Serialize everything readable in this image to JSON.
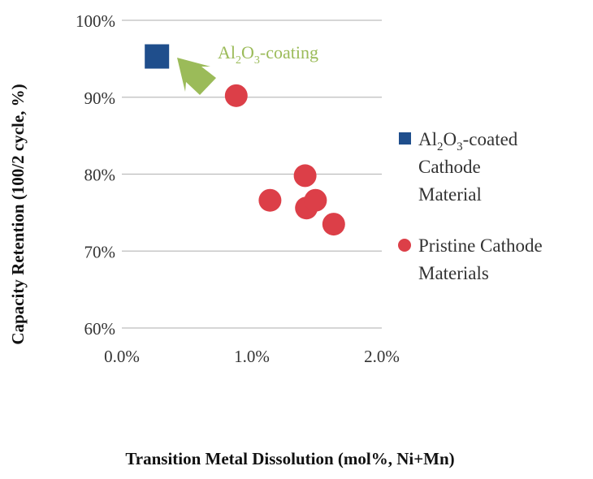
{
  "chart_data": {
    "type": "scatter",
    "title": "",
    "xlabel": "Transition  Metal Dissolution  (mol%,  Ni+Mn)",
    "ylabel": "Capacity  Retention (100/2 cycle, %)",
    "xlim": [
      0.0,
      2.0
    ],
    "ylim": [
      60,
      100
    ],
    "x_ticks": [
      "0.0%",
      "1.0%",
      "2.0%"
    ],
    "y_ticks": [
      "60%",
      "70%",
      "80%",
      "90%",
      "100%"
    ],
    "grid": "horizontal",
    "legend_position": "right",
    "series": [
      {
        "name_parts": [
          "Al",
          "2",
          "O",
          "3",
          "-coated",
          "Cathode",
          "Material"
        ],
        "marker": "square",
        "color": "#1F4E8C",
        "points": [
          [
            0.27,
            95.3
          ]
        ]
      },
      {
        "name_parts": [
          "Pristine Cathode",
          "Materials"
        ],
        "marker": "circle",
        "color": "#DC3F48",
        "points": [
          [
            0.88,
            90.2
          ],
          [
            1.14,
            76.6
          ],
          [
            1.41,
            79.8
          ],
          [
            1.42,
            75.6
          ],
          [
            1.49,
            76.6
          ],
          [
            1.63,
            73.5
          ]
        ]
      }
    ],
    "annotation": {
      "parts": [
        "Al",
        "2",
        "O",
        "3",
        "-coating"
      ],
      "color": "#9BBB59"
    }
  }
}
